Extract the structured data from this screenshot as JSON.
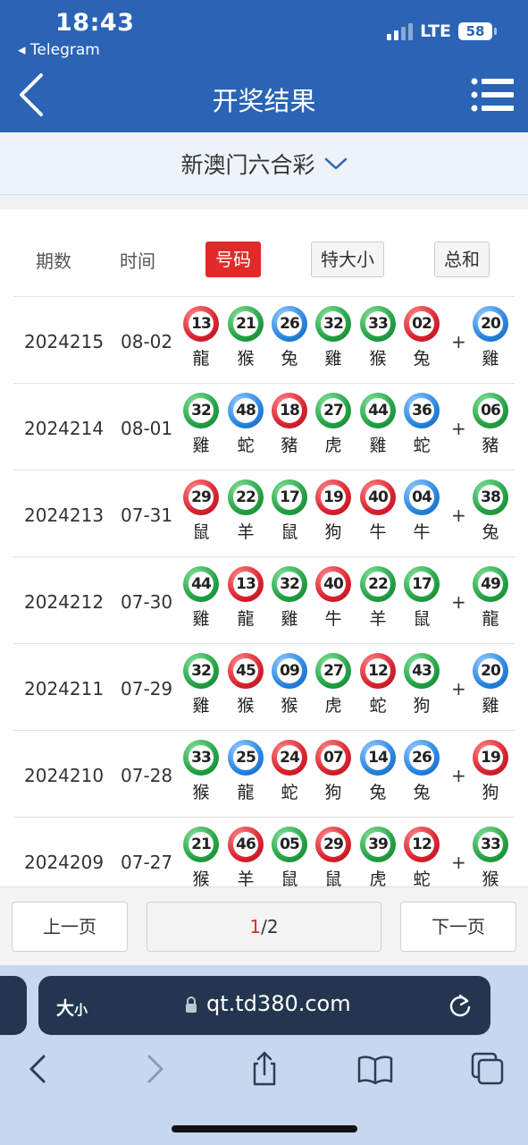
{
  "status_bar": {
    "time": "18:43",
    "back_app": "◂ Telegram",
    "network": "LTE",
    "battery": "58"
  },
  "header": {
    "title": "开奖结果"
  },
  "selector": {
    "lottery": "新澳门六合彩"
  },
  "columns": {
    "period": "期数",
    "time": "时间",
    "numbers": "号码",
    "big_small": "特大小",
    "sum": "总和"
  },
  "colors": {
    "header_blue": "#2b63b5",
    "active_red": "#e12b2b",
    "ball_red": "#d9232f",
    "ball_green": "#23a244",
    "ball_blue": "#2785e0"
  },
  "plus_sign": "+",
  "draws": [
    {
      "period": "2024215",
      "date": "08-02",
      "balls": [
        {
          "n": "13",
          "z": "龍",
          "c": "red"
        },
        {
          "n": "21",
          "z": "猴",
          "c": "green"
        },
        {
          "n": "26",
          "z": "兔",
          "c": "blue"
        },
        {
          "n": "32",
          "z": "雞",
          "c": "green"
        },
        {
          "n": "33",
          "z": "猴",
          "c": "green"
        },
        {
          "n": "02",
          "z": "兔",
          "c": "red"
        },
        {
          "n": "20",
          "z": "雞",
          "c": "blue"
        }
      ]
    },
    {
      "period": "2024214",
      "date": "08-01",
      "balls": [
        {
          "n": "32",
          "z": "雞",
          "c": "green"
        },
        {
          "n": "48",
          "z": "蛇",
          "c": "blue"
        },
        {
          "n": "18",
          "z": "豬",
          "c": "red"
        },
        {
          "n": "27",
          "z": "虎",
          "c": "green"
        },
        {
          "n": "44",
          "z": "雞",
          "c": "green"
        },
        {
          "n": "36",
          "z": "蛇",
          "c": "blue"
        },
        {
          "n": "06",
          "z": "豬",
          "c": "green"
        }
      ]
    },
    {
      "period": "2024213",
      "date": "07-31",
      "balls": [
        {
          "n": "29",
          "z": "鼠",
          "c": "red"
        },
        {
          "n": "22",
          "z": "羊",
          "c": "green"
        },
        {
          "n": "17",
          "z": "鼠",
          "c": "green"
        },
        {
          "n": "19",
          "z": "狗",
          "c": "red"
        },
        {
          "n": "40",
          "z": "牛",
          "c": "red"
        },
        {
          "n": "04",
          "z": "牛",
          "c": "blue"
        },
        {
          "n": "38",
          "z": "兔",
          "c": "green"
        }
      ]
    },
    {
      "period": "2024212",
      "date": "07-30",
      "balls": [
        {
          "n": "44",
          "z": "雞",
          "c": "green"
        },
        {
          "n": "13",
          "z": "龍",
          "c": "red"
        },
        {
          "n": "32",
          "z": "雞",
          "c": "green"
        },
        {
          "n": "40",
          "z": "牛",
          "c": "red"
        },
        {
          "n": "22",
          "z": "羊",
          "c": "green"
        },
        {
          "n": "17",
          "z": "鼠",
          "c": "green"
        },
        {
          "n": "49",
          "z": "龍",
          "c": "green"
        }
      ]
    },
    {
      "period": "2024211",
      "date": "07-29",
      "balls": [
        {
          "n": "32",
          "z": "雞",
          "c": "green"
        },
        {
          "n": "45",
          "z": "猴",
          "c": "red"
        },
        {
          "n": "09",
          "z": "猴",
          "c": "blue"
        },
        {
          "n": "27",
          "z": "虎",
          "c": "green"
        },
        {
          "n": "12",
          "z": "蛇",
          "c": "red"
        },
        {
          "n": "43",
          "z": "狗",
          "c": "green"
        },
        {
          "n": "20",
          "z": "雞",
          "c": "blue"
        }
      ]
    },
    {
      "period": "2024210",
      "date": "07-28",
      "balls": [
        {
          "n": "33",
          "z": "猴",
          "c": "green"
        },
        {
          "n": "25",
          "z": "龍",
          "c": "blue"
        },
        {
          "n": "24",
          "z": "蛇",
          "c": "red"
        },
        {
          "n": "07",
          "z": "狗",
          "c": "red"
        },
        {
          "n": "14",
          "z": "兔",
          "c": "blue"
        },
        {
          "n": "26",
          "z": "兔",
          "c": "blue"
        },
        {
          "n": "19",
          "z": "狗",
          "c": "red"
        }
      ]
    },
    {
      "period": "2024209",
      "date": "07-27",
      "balls": [
        {
          "n": "21",
          "z": "猴",
          "c": "green"
        },
        {
          "n": "46",
          "z": "羊",
          "c": "red"
        },
        {
          "n": "05",
          "z": "鼠",
          "c": "green"
        },
        {
          "n": "29",
          "z": "鼠",
          "c": "red"
        },
        {
          "n": "39",
          "z": "虎",
          "c": "green"
        },
        {
          "n": "12",
          "z": "蛇",
          "c": "red"
        },
        {
          "n": "33",
          "z": "猴",
          "c": "green"
        }
      ]
    }
  ],
  "pagination": {
    "prev": "上一页",
    "current": "1",
    "separator": "/",
    "total": "2",
    "next": "下一页"
  },
  "browser": {
    "text_size_big": "大",
    "text_size_small": "小",
    "url": "qt.td380.com"
  }
}
